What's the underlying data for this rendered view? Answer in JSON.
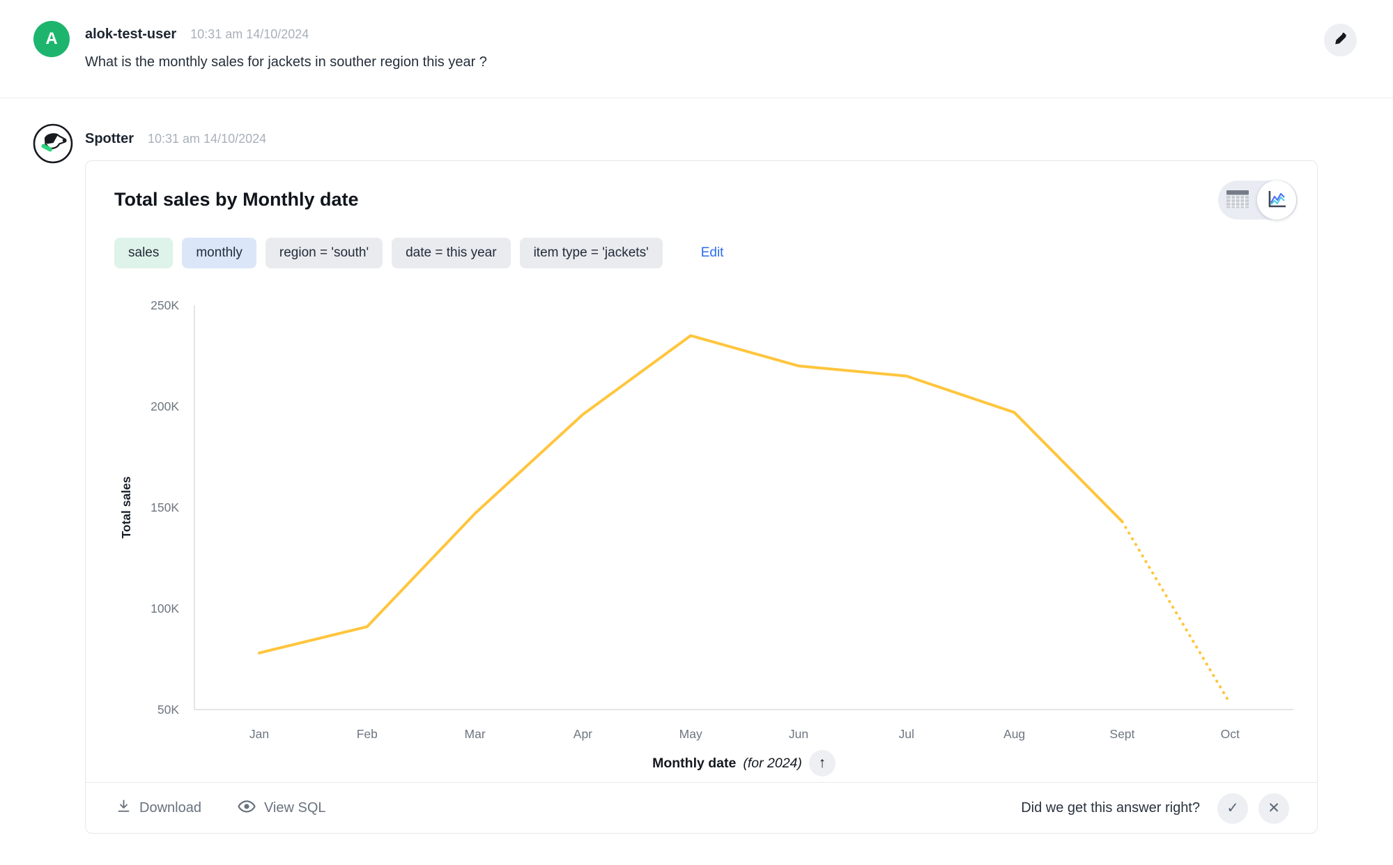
{
  "user_message": {
    "avatar_letter": "A",
    "avatar_color": "#1db56e",
    "name": "alok-test-user",
    "timestamp": "10:31 am 14/10/2024",
    "question": "What is the monthly sales for jackets in souther region this year ?"
  },
  "bot_message": {
    "name": "Spotter",
    "timestamp": "10:31 am 14/10/2024"
  },
  "card": {
    "title": "Total sales by Monthly date",
    "chips": [
      {
        "label": "sales",
        "variant": "green"
      },
      {
        "label": "monthly",
        "variant": "blue"
      },
      {
        "label": "region = 'south'",
        "variant": "gray"
      },
      {
        "label": "date = this year",
        "variant": "gray"
      },
      {
        "label": "item type = 'jackets'",
        "variant": "gray"
      }
    ],
    "edit_label": "Edit",
    "view_toggle": {
      "options": [
        "table",
        "chart"
      ],
      "active": "chart"
    }
  },
  "chart_data": {
    "type": "line",
    "title": "Total sales by Monthly date",
    "x": [
      "Jan",
      "Feb",
      "Mar",
      "Apr",
      "May",
      "Jun",
      "Jul",
      "Aug",
      "Sept",
      "Oct"
    ],
    "series": [
      {
        "name": "Total sales",
        "values": [
          78000,
          91000,
          147000,
          196000,
          235000,
          220000,
          215000,
          197000,
          143000,
          53000
        ],
        "color": "#FFC53D",
        "dashed_tail_from_index": 8
      }
    ],
    "ylabel": "Total sales",
    "xlabel_bold": "Monthly date",
    "xlabel_italic": "(for 2024)",
    "ylim": [
      50000,
      250000
    ],
    "ytick_labels": [
      "50K",
      "100K",
      "150K",
      "200K",
      "250K"
    ],
    "grid": false,
    "legend": false,
    "axis_color": "#e3e5e8",
    "tick_text_color": "#6e7681"
  },
  "footer": {
    "download_label": "Download",
    "view_sql_label": "View SQL",
    "feedback_question": "Did we get this answer right?"
  },
  "icons": {
    "sort_arrow": "↑",
    "check": "✓",
    "close": "✕"
  }
}
